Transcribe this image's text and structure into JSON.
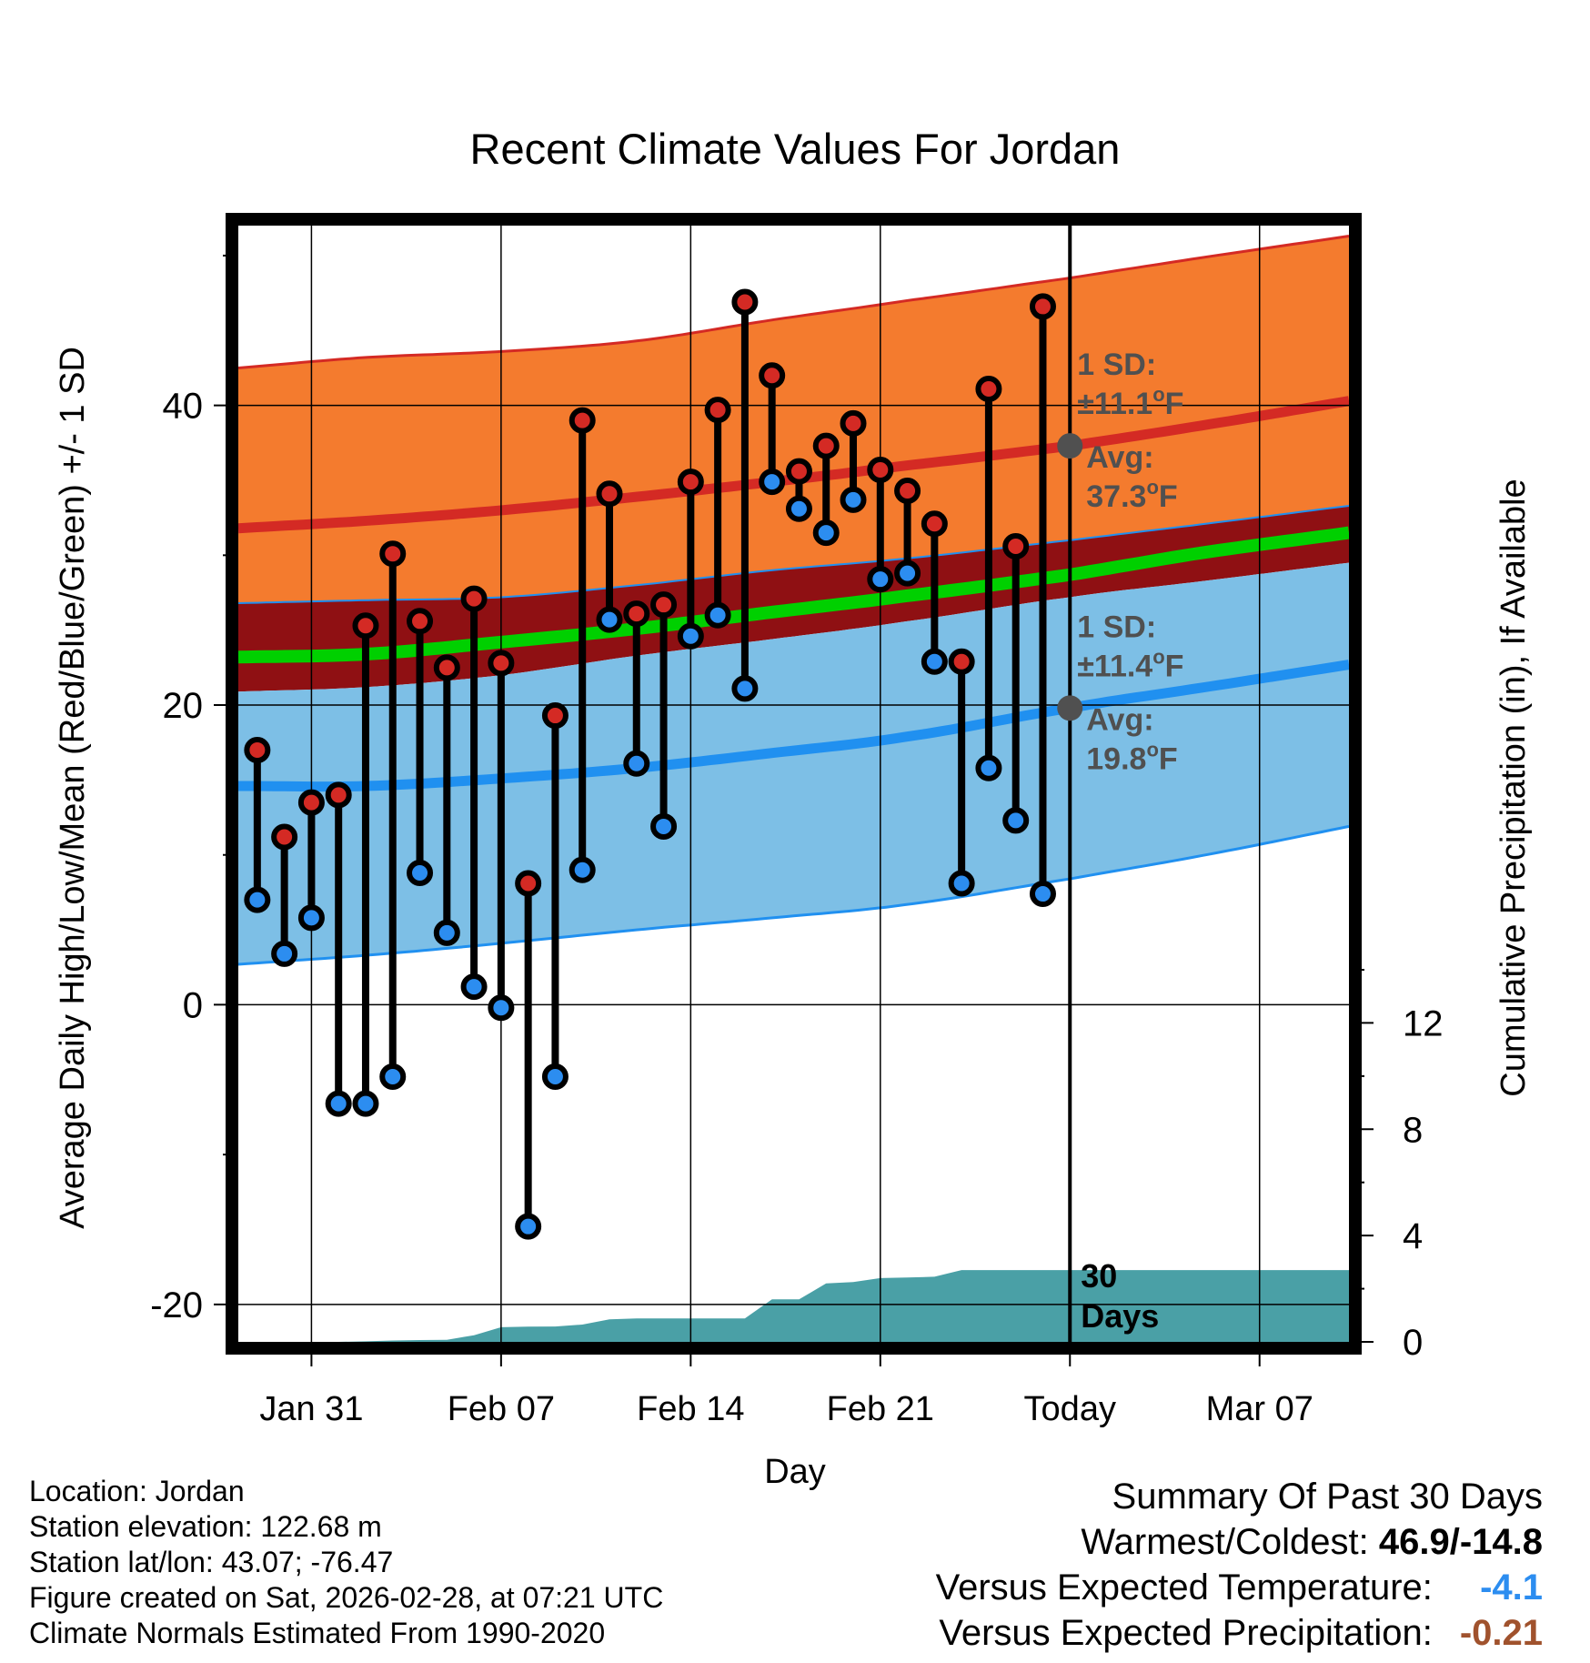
{
  "chart_data": {
    "type": "climate-range",
    "title": "Recent Climate Values For Jordan",
    "xlabel": "Day",
    "ylabel_left": "Average Daily High/Low/Mean (Red/Blue/Green) +/- 1 SD",
    "ylabel_right": "Cumulative Precipitation (in), If Available",
    "ylim": [
      -22.5,
      52
    ],
    "y_ticks": [
      -20,
      0,
      20,
      40
    ],
    "precip_ticks": [
      0,
      4,
      8,
      12
    ],
    "precip_ylim": [
      0,
      42
    ],
    "xlim": [
      -2.7,
      38.3
    ],
    "x_ticks": [
      {
        "label": "Jan 31",
        "day": 0
      },
      {
        "label": "Feb 07",
        "day": 7
      },
      {
        "label": "Feb 14",
        "day": 14
      },
      {
        "label": "Feb 21",
        "day": 21
      },
      {
        "label": "Today",
        "day": 28
      },
      {
        "label": "Mar 07",
        "day": 35
      }
    ],
    "normals": {
      "days": [
        -2.7,
        2,
        7,
        12,
        17,
        22,
        28,
        33,
        38.3
      ],
      "high_mean": [
        31.8,
        32.3,
        33.0,
        33.9,
        34.9,
        36.0,
        37.3,
        38.7,
        40.3
      ],
      "high_sd_upper": [
        42.5,
        43.2,
        43.6,
        44.3,
        45.7,
        47.0,
        48.5,
        49.9,
        51.3
      ],
      "high_sd_lower": [
        26.8,
        27.0,
        27.2,
        28.0,
        29.0,
        29.8,
        31.0,
        32.1,
        33.3
      ],
      "mean_line": [
        23.2,
        23.4,
        24.2,
        25.1,
        26.2,
        27.3,
        28.7,
        30.2,
        31.5
      ],
      "low_mean": [
        14.6,
        14.6,
        15.1,
        15.8,
        16.8,
        17.9,
        19.8,
        21.2,
        22.7
      ],
      "low_sd_upper": [
        20.9,
        21.2,
        22.0,
        23.3,
        24.4,
        25.6,
        27.2,
        28.3,
        29.5
      ],
      "low_sd_lower": [
        2.7,
        3.3,
        4.1,
        5.0,
        5.8,
        6.7,
        8.4,
        10.0,
        11.9
      ]
    },
    "observations": [
      {
        "day": -2,
        "high": 17.0,
        "low": 7.0
      },
      {
        "day": -1,
        "high": 11.2,
        "low": 3.4
      },
      {
        "day": 0,
        "high": 13.5,
        "low": 5.8
      },
      {
        "day": 1,
        "high": 14.0,
        "low": -6.6
      },
      {
        "day": 2,
        "high": 25.3,
        "low": -6.6
      },
      {
        "day": 3,
        "high": 30.1,
        "low": -4.8
      },
      {
        "day": 4,
        "high": 25.6,
        "low": 8.8
      },
      {
        "day": 5,
        "high": 22.5,
        "low": 4.8
      },
      {
        "day": 6,
        "high": 27.1,
        "low": 1.2
      },
      {
        "day": 7,
        "high": 22.8,
        "low": -0.2
      },
      {
        "day": 8,
        "high": 8.1,
        "low": -14.8
      },
      {
        "day": 9,
        "high": 19.3,
        "low": -4.8
      },
      {
        "day": 10,
        "high": 39.0,
        "low": 9.0
      },
      {
        "day": 11,
        "high": 34.1,
        "low": 25.7
      },
      {
        "day": 12,
        "high": 26.1,
        "low": 16.1
      },
      {
        "day": 13,
        "high": 26.7,
        "low": 11.9
      },
      {
        "day": 14,
        "high": 34.9,
        "low": 24.6
      },
      {
        "day": 15,
        "high": 39.7,
        "low": 26.0
      },
      {
        "day": 16,
        "high": 46.9,
        "low": 21.1
      },
      {
        "day": 17,
        "high": 42.0,
        "low": 34.9
      },
      {
        "day": 18,
        "high": 35.6,
        "low": 33.1
      },
      {
        "day": 19,
        "high": 37.3,
        "low": 31.5
      },
      {
        "day": 20,
        "high": 38.8,
        "low": 33.7
      },
      {
        "day": 21,
        "high": 35.7,
        "low": 28.4
      },
      {
        "day": 22,
        "high": 34.3,
        "low": 28.8
      },
      {
        "day": 23,
        "high": 32.1,
        "low": 22.9
      },
      {
        "day": 24,
        "high": 22.9,
        "low": 8.1
      },
      {
        "day": 25,
        "high": 41.1,
        "low": 15.8
      },
      {
        "day": 26,
        "high": 30.6,
        "low": 12.3
      },
      {
        "day": 27,
        "high": 46.6,
        "low": 7.4
      }
    ],
    "precip": {
      "days": [
        -2.7,
        1,
        2,
        3,
        4,
        5,
        6,
        7,
        8,
        9,
        10,
        11,
        12,
        16,
        17,
        18,
        19,
        20,
        21,
        22,
        23,
        24,
        25,
        28,
        38.3
      ],
      "values": [
        0.0,
        0.0,
        0.02,
        0.05,
        0.07,
        0.08,
        0.25,
        0.55,
        0.57,
        0.58,
        0.65,
        0.85,
        0.88,
        0.88,
        1.6,
        1.6,
        2.2,
        2.25,
        2.4,
        2.42,
        2.45,
        2.7,
        2.7,
        2.7,
        2.7
      ]
    },
    "annotations": {
      "high_sd_label": "1 SD:",
      "high_sd_value": "±11.1",
      "high_avg_label": "Avg:",
      "high_avg_value": "37.3",
      "high_avg": 37.3,
      "low_sd_label": "1 SD:",
      "low_sd_value": "±11.4",
      "low_avg_label": "Avg:",
      "low_avg_value": "19.8",
      "low_avg": 19.8,
      "degree_unit": "o",
      "unit_letter": "F",
      "days_number": "30",
      "days_word": "Days"
    },
    "colors": {
      "high_band": "#f47b2e",
      "high_line": "#d42a24",
      "mean_band": "#8f1013",
      "mean_line": "#00d000",
      "low_band": "#7dbfe6",
      "low_line": "#2090f0",
      "precip": "#4aa0a6",
      "high_marker": "#d42a24",
      "low_marker": "#2c8df0",
      "annotation": "#505050"
    }
  },
  "info": {
    "location": "Location: Jordan",
    "elevation": "Station elevation: 122.68 m",
    "latlon": "Station lat/lon: 43.07; -76.47",
    "created": "Figure created on Sat, 2026-02-28, at 07:21 UTC",
    "normals": "Climate Normals Estimated From 1990-2020"
  },
  "summary": {
    "heading": "Summary Of Past 30 Days",
    "warmest_label": "Warmest/Coldest:",
    "warmest_value": "46.9/-14.8",
    "temp_label": "Versus Expected Temperature:",
    "temp_value": "-4.1",
    "temp_color": "#2c8df0",
    "precip_label": "Versus Expected Precipitation:",
    "precip_value": "-0.21",
    "precip_color": "#a0522d"
  }
}
